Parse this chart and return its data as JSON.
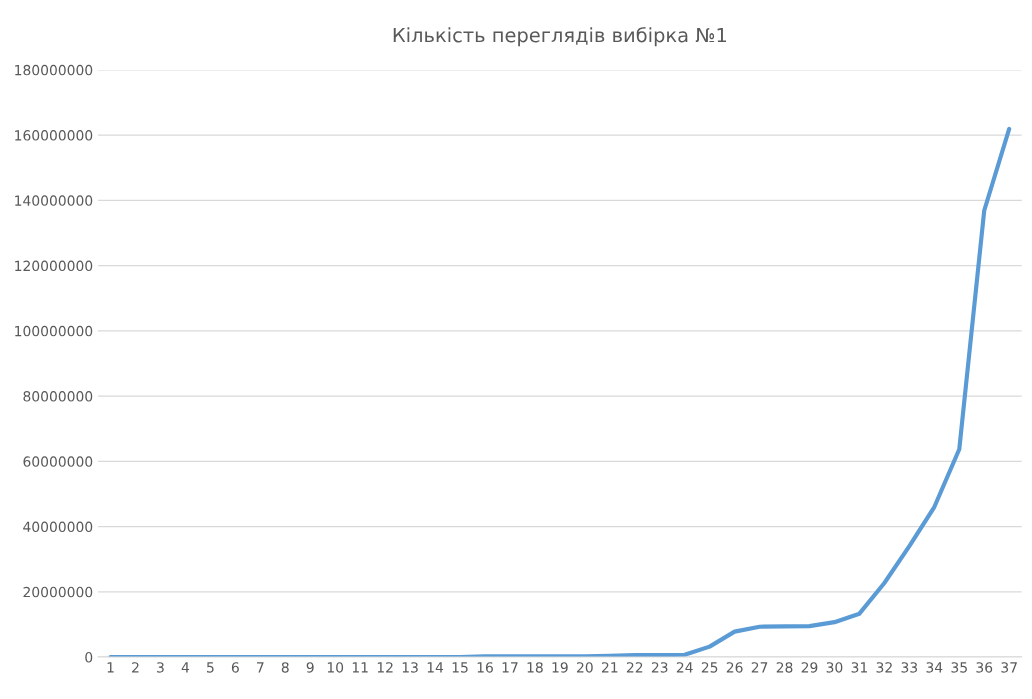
{
  "chart_data": {
    "type": "line",
    "title": "Кількість переглядів вибірка №1",
    "categories": [
      "1",
      "2",
      "3",
      "4",
      "5",
      "6",
      "7",
      "8",
      "9",
      "10",
      "11",
      "12",
      "13",
      "14",
      "15",
      "16",
      "17",
      "18",
      "19",
      "20",
      "21",
      "22",
      "23",
      "24",
      "25",
      "26",
      "27",
      "28",
      "29",
      "30",
      "31",
      "32",
      "33",
      "34",
      "35",
      "36",
      "37"
    ],
    "series": [
      {
        "color": "#5b9bd5",
        "values": [
          0,
          0,
          0,
          0,
          0,
          0,
          0,
          0,
          0,
          0,
          0,
          0,
          0,
          0,
          0,
          200000,
          200000,
          200000,
          200000,
          200000,
          400000,
          600000,
          600000,
          700000,
          3200000,
          7800000,
          9300000,
          9400000,
          9500000,
          10700000,
          13300000,
          22700000,
          34000000,
          46000000,
          63700000,
          136900000,
          161900000
        ]
      }
    ],
    "ylim": [
      0,
      180000000
    ],
    "yticks": [
      0,
      20000000,
      40000000,
      60000000,
      80000000,
      100000000,
      120000000,
      140000000,
      160000000,
      180000000
    ],
    "grid": "y",
    "legend": false,
    "marker": "none",
    "line_style": "solid"
  }
}
